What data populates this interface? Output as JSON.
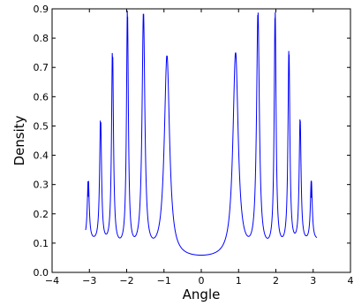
{
  "chart_data": {
    "type": "line",
    "title": "",
    "xlabel": "Angle",
    "ylabel": "Density",
    "xlim": [
      -4,
      4
    ],
    "ylim": [
      0.0,
      0.9
    ],
    "x_ticks": [
      -4,
      -3,
      -2,
      -1,
      0,
      1,
      2,
      3,
      4
    ],
    "x_tick_labels": [
      "−4",
      "−3",
      "−2",
      "−1",
      "0",
      "1",
      "2",
      "3",
      "4"
    ],
    "y_ticks": [
      0.0,
      0.1,
      0.2,
      0.3,
      0.4,
      0.5,
      0.6,
      0.7,
      0.8,
      0.9
    ],
    "y_tick_labels": [
      "0.0",
      "0.1",
      "0.2",
      "0.3",
      "0.4",
      "0.5",
      "0.6",
      "0.7",
      "0.8",
      "0.9"
    ],
    "grid": false,
    "legend": "none",
    "line_color": "#0000ff",
    "x_range": [
      -3.1,
      3.1
    ],
    "baseline": 0.045,
    "peaks": [
      {
        "x": -3.03,
        "y": 0.26
      },
      {
        "x": -2.7,
        "y": 0.485
      },
      {
        "x": -2.38,
        "y": 0.735
      },
      {
        "x": -1.98,
        "y": 0.865
      },
      {
        "x": -1.55,
        "y": 0.86
      },
      {
        "x": -0.92,
        "y": 0.73
      },
      {
        "x": 0.92,
        "y": 0.74
      },
      {
        "x": 1.52,
        "y": 0.86
      },
      {
        "x": 1.98,
        "y": 0.86
      },
      {
        "x": 2.35,
        "y": 0.72
      },
      {
        "x": 2.65,
        "y": 0.475
      },
      {
        "x": 2.95,
        "y": 0.255
      }
    ]
  }
}
